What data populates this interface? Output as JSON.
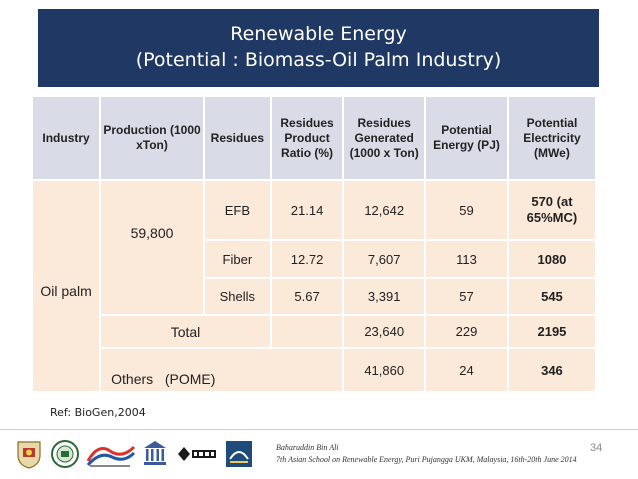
{
  "title": {
    "line1": "Renewable  Energy",
    "line2": "(Potential : Biomass-Oil Palm Industry)"
  },
  "table": {
    "headers": {
      "industry": "Industry",
      "production": "Production (1000 xTon)",
      "residues": "Residues",
      "ratio": "Residues Product Ratio (%)",
      "generated": "Residues Generated (1000 x Ton)",
      "energy": "Potential Energy (PJ)",
      "electricity": "Potential Electricity (MWe)"
    },
    "industry": "Oil palm",
    "production": "59,800",
    "rows": [
      {
        "residue": "EFB",
        "ratio": "21.14",
        "generated": "12,642",
        "energy": "59",
        "electricity": "570 (at 65%MC)"
      },
      {
        "residue": "Fiber",
        "ratio": "12.72",
        "generated": "7,607",
        "energy": "113",
        "electricity": "1080"
      },
      {
        "residue": "Shells",
        "ratio": "5.67",
        "generated": "3,391",
        "energy": "57",
        "electricity": "545"
      }
    ],
    "total": {
      "label": "Total",
      "generated": "23,640",
      "energy": "229",
      "electricity": "2195"
    },
    "others": {
      "label": "Others   (POME)",
      "generated": "41,860",
      "energy": "24",
      "electricity": "346"
    }
  },
  "reference": "Ref: BioGen,2004",
  "footer": {
    "author": "Baharuddin Bin Ali",
    "event": "7th Asian School on Renewable Energy, Puri Pujangga UKM, Malaysia, 16th-20th June 2014",
    "page": "34"
  },
  "logos": [
    "university-crest-icon",
    "institute-seal-icon",
    "seri-logo-icon",
    "unesco-logo-icon",
    "ieee-logo-icon",
    "akademi-sains-logo-icon"
  ]
}
